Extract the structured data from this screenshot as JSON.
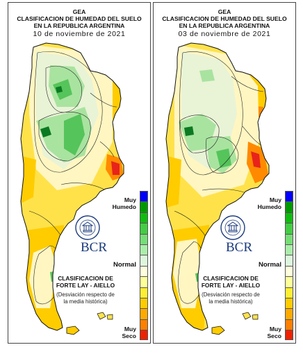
{
  "panels": [
    {
      "id": "left",
      "header": {
        "org": "GEA",
        "title_line1": "CLASIFICACION DE HUMEDAD DEL SUELO",
        "title_line2": "EN LA REPUBLICA ARGENTINA",
        "date": "10 de noviembre de 2021"
      }
    },
    {
      "id": "right",
      "header": {
        "org": "GEA",
        "title_line1": "CLASIFICACION DE HUMEDAD DEL SUELO",
        "title_line2": "EN LA REPUBLICA ARGENTINA",
        "date": "03 de noviembre de 2021"
      }
    }
  ],
  "legend": {
    "top_label_line1": "Muy",
    "top_label_line2": "Humedo",
    "middle_label": "Normal",
    "bottom_label_line1": "Muy",
    "bottom_label_line2": "Seco",
    "title_line1": "CLASIFICACION DE",
    "title_line2": "FORTE LAY - AIELLO",
    "desc_line1": "(Desviación respecto de",
    "desc_line2": "la media histórica)",
    "colors": [
      "#0000ff",
      "#009900",
      "#11bb11",
      "#44cc44",
      "#77dd77",
      "#aaeeaa",
      "#ddf6dd",
      "#ffffdd",
      "#ffff99",
      "#ffee33",
      "#ffcc00",
      "#ffaa00",
      "#ff8000",
      "#ee2200"
    ]
  },
  "logo": {
    "seal_text": "BOLSA DE COMERCIO DE ROSARIO",
    "brand": "BCR"
  },
  "map_palette": {
    "very_wet": "#0b7a22",
    "wet": "#55c45a",
    "moist": "#a9e3a0",
    "normal": "#e9f3d6",
    "slightly_dry": "#fff6c2",
    "dry": "#ffe24a",
    "drier": "#ffcc00",
    "very_dry": "#ff8a00",
    "extreme_dry": "#e8231b",
    "outline": "#111111"
  }
}
